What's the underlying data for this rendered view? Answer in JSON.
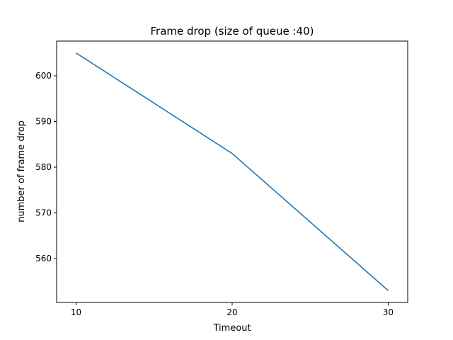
{
  "chart_data": {
    "type": "line",
    "title": "Frame drop (size of queue :40)",
    "xlabel": "Timeout",
    "ylabel": "number of frame drop",
    "x": [
      10,
      20,
      30
    ],
    "series": [
      {
        "values": [
          605,
          583,
          553
        ],
        "color": "#1f77b4"
      }
    ],
    "xlim": [
      8.75,
      31.25
    ],
    "ylim": [
      550.4,
      607.6
    ],
    "xticks": [
      "10",
      "20",
      "30"
    ],
    "yticks": [
      "560",
      "570",
      "580",
      "590",
      "600"
    ],
    "grid": false
  }
}
